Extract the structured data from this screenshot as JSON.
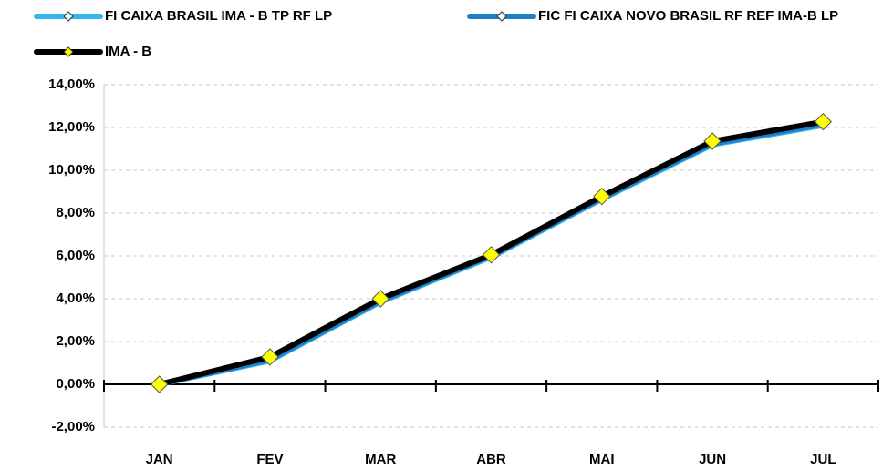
{
  "chart_data": {
    "type": "line",
    "categories": [
      "JAN",
      "FEV",
      "MAR",
      "ABR",
      "MAI",
      "JUN",
      "JUL"
    ],
    "series": [
      {
        "name": "FI CAIXA BRASIL IMA - B TP RF LP",
        "color": "#33b5f0",
        "marker_color": "#ffffff",
        "values": [
          0,
          1.1,
          3.85,
          5.95,
          8.65,
          11.2,
          12.1
        ]
      },
      {
        "name": "FIC FI CAIXA NOVO BRASIL RF REF IMA-B LP",
        "color": "#1f7fc6",
        "marker_color": "#ffffff",
        "values": [
          0,
          1.15,
          3.9,
          6.0,
          8.7,
          11.25,
          12.15
        ]
      },
      {
        "name": "IMA - B",
        "color": "#000000",
        "marker_color": "#ffff00",
        "values": [
          0,
          1.28,
          4.0,
          6.05,
          8.78,
          11.36,
          12.27
        ]
      }
    ],
    "ylim": [
      -2,
      14
    ],
    "yticks": [
      {
        "value": -2,
        "label": "-2,00%"
      },
      {
        "value": 0,
        "label": "0,00%"
      },
      {
        "value": 2,
        "label": "2,00%"
      },
      {
        "value": 4,
        "label": "4,00%"
      },
      {
        "value": 6,
        "label": "6,00%"
      },
      {
        "value": 8,
        "label": "8,00%"
      },
      {
        "value": 10,
        "label": "10,00%"
      },
      {
        "value": 12,
        "label": "12,00%"
      },
      {
        "value": 14,
        "label": "14,00%"
      }
    ],
    "grid": true
  }
}
